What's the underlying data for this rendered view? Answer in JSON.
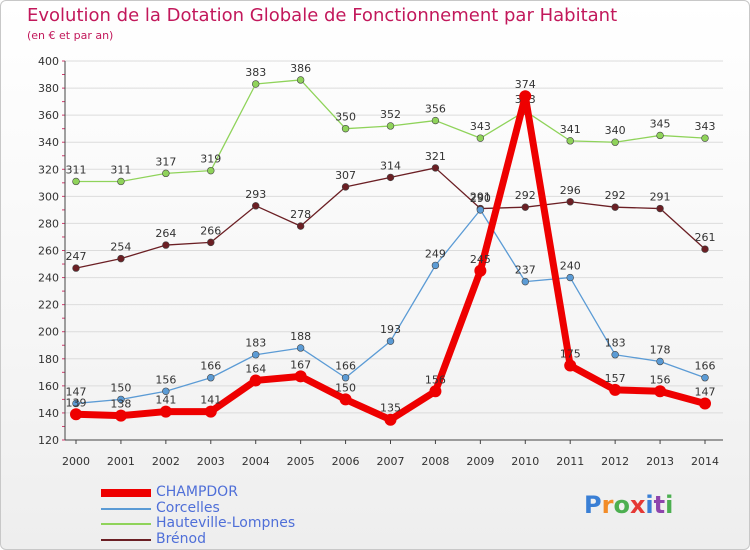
{
  "header": {
    "title": "Evolution de la Dotation Globale de Fonctionnement par Habitant",
    "subtitle": "(en € et par an)"
  },
  "brand": {
    "text": "Proxiti",
    "letters": [
      "P",
      "r",
      "o",
      "x",
      "i",
      "t",
      "i"
    ]
  },
  "colors": {
    "title": "#c2185b",
    "legend_text": "#4f6fd8",
    "grid": "#dcdcdc",
    "axis_ticks": "#d23c6e"
  },
  "chart_data": {
    "type": "line",
    "x": [
      2000,
      2001,
      2002,
      2003,
      2004,
      2005,
      2006,
      2007,
      2008,
      2009,
      2010,
      2011,
      2012,
      2013,
      2014
    ],
    "ylim": [
      120,
      400
    ],
    "yticks": [
      120,
      140,
      160,
      180,
      200,
      220,
      240,
      260,
      280,
      300,
      320,
      340,
      360,
      380,
      400
    ],
    "grid": true,
    "legend_position": "bottom-left",
    "series": [
      {
        "name": "Hauteville-Lompnes",
        "color": "#8fd35a",
        "values": [
          311,
          311,
          317,
          319,
          383,
          386,
          350,
          352,
          356,
          343,
          363,
          341,
          340,
          345,
          343
        ]
      },
      {
        "name": "Brénod",
        "color": "#6b1f24",
        "values": [
          247,
          254,
          264,
          266,
          293,
          278,
          307,
          314,
          321,
          291,
          292,
          296,
          292,
          291,
          261
        ]
      },
      {
        "name": "Corcelles",
        "color": "#5b9bd5",
        "values": [
          147,
          150,
          156,
          166,
          183,
          188,
          166,
          193,
          249,
          290,
          237,
          240,
          183,
          178,
          166
        ]
      },
      {
        "name": "CHAMPDOR",
        "color": "#ee0000",
        "values": [
          139,
          138,
          141,
          141,
          164,
          167,
          150,
          135,
          156,
          245,
          374,
          175,
          157,
          156,
          147
        ]
      }
    ],
    "legend_order": [
      "CHAMPDOR",
      "Corcelles",
      "Hauteville-Lompnes",
      "Brénod"
    ]
  }
}
